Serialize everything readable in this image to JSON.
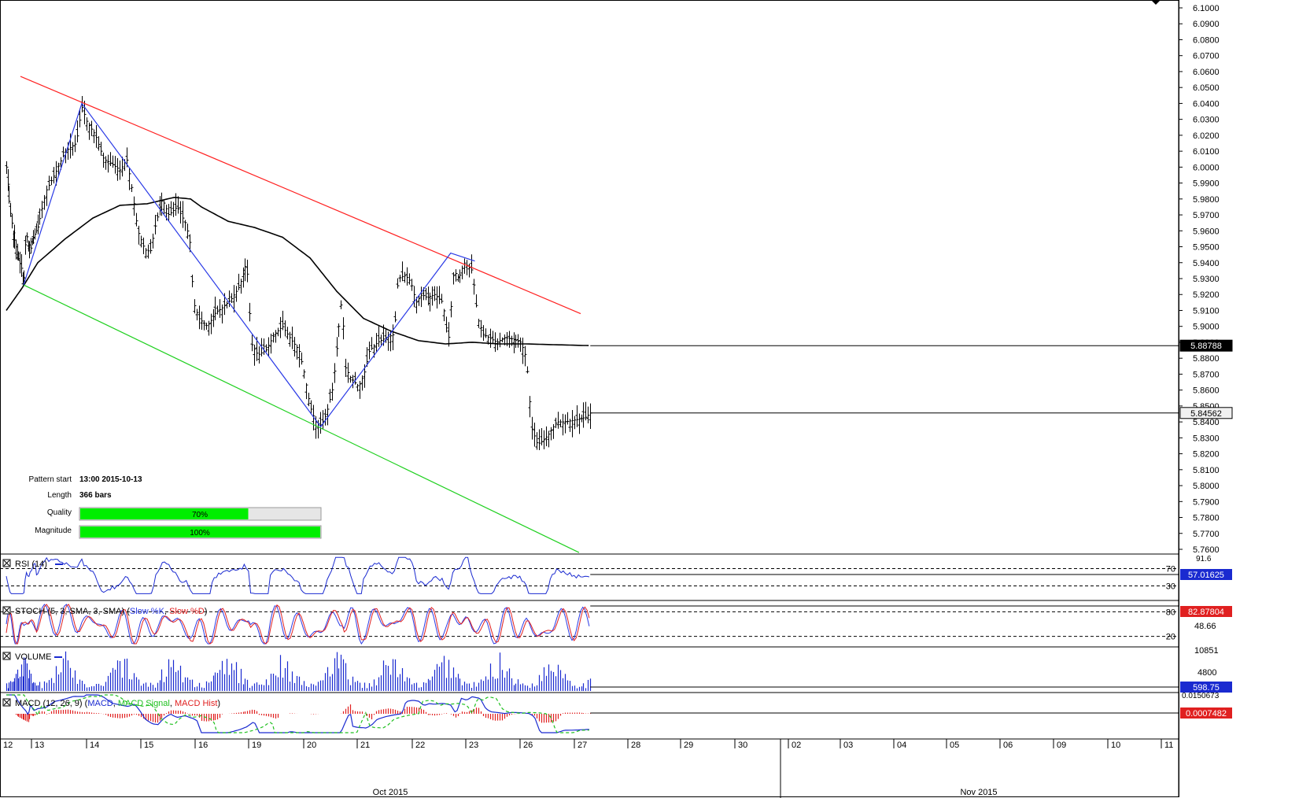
{
  "chart_data": {
    "type": "candlestick",
    "price_axis": {
      "ticks": [
        "6.1000",
        "6.0900",
        "6.0800",
        "6.0700",
        "6.0600",
        "6.0500",
        "6.0400",
        "6.0300",
        "6.0200",
        "6.0100",
        "6.0000",
        "5.9900",
        "5.9800",
        "5.9700",
        "5.9600",
        "5.9500",
        "5.9400",
        "5.9300",
        "5.9200",
        "5.9100",
        "5.9000",
        "5.8900",
        "5.8800",
        "5.8700",
        "5.8600",
        "5.8500",
        "5.8400",
        "5.8300",
        "5.8200",
        "5.8100",
        "5.8000",
        "5.7900",
        "5.7800",
        "5.7700",
        "5.7600"
      ],
      "ylim": [
        5.755,
        6.103
      ],
      "current_ma": "5.88788",
      "current_price": "5.84562"
    },
    "price_series": [
      {
        "d": 0,
        "v": 6.0
      },
      {
        "d": 0.1,
        "v": 5.975
      },
      {
        "d": 0.22,
        "v": 5.958
      },
      {
        "d": 0.35,
        "v": 5.945
      },
      {
        "d": 0.48,
        "v": 5.936
      },
      {
        "d": 0.55,
        "v": 5.926
      },
      {
        "d": 0.62,
        "v": 5.96
      },
      {
        "d": 0.72,
        "v": 5.945
      },
      {
        "d": 0.85,
        "v": 5.955
      },
      {
        "d": 1.0,
        "v": 5.963
      },
      {
        "d": 1.15,
        "v": 5.985
      },
      {
        "d": 1.3,
        "v": 5.995
      },
      {
        "d": 1.5,
        "v": 6.01
      },
      {
        "d": 1.7,
        "v": 6.015
      },
      {
        "d": 1.8,
        "v": 6.038
      },
      {
        "d": 1.9,
        "v": 6.028
      },
      {
        "d": 2.05,
        "v": 6.02
      },
      {
        "d": 2.2,
        "v": 6.005
      },
      {
        "d": 2.35,
        "v": 6.002
      },
      {
        "d": 2.5,
        "v": 5.998
      },
      {
        "d": 2.62,
        "v": 6.005
      },
      {
        "d": 2.72,
        "v": 5.985
      },
      {
        "d": 2.82,
        "v": 5.96
      },
      {
        "d": 2.95,
        "v": 5.948
      },
      {
        "d": 3.05,
        "v": 5.947
      },
      {
        "d": 3.15,
        "v": 5.965
      },
      {
        "d": 3.28,
        "v": 5.98
      },
      {
        "d": 3.4,
        "v": 5.97
      },
      {
        "d": 3.55,
        "v": 5.975
      },
      {
        "d": 3.7,
        "v": 5.965
      },
      {
        "d": 3.78,
        "v": 5.955
      },
      {
        "d": 3.85,
        "v": 5.915
      },
      {
        "d": 3.95,
        "v": 5.905
      },
      {
        "d": 4.1,
        "v": 5.9
      },
      {
        "d": 4.25,
        "v": 5.908
      },
      {
        "d": 4.4,
        "v": 5.912
      },
      {
        "d": 4.55,
        "v": 5.917
      },
      {
        "d": 4.7,
        "v": 5.925
      },
      {
        "d": 4.82,
        "v": 5.938
      },
      {
        "d": 4.88,
        "v": 5.93
      },
      {
        "d": 4.92,
        "v": 5.89
      },
      {
        "d": 5.05,
        "v": 5.882
      },
      {
        "d": 5.2,
        "v": 5.885
      },
      {
        "d": 5.35,
        "v": 5.895
      },
      {
        "d": 5.5,
        "v": 5.9
      },
      {
        "d": 5.65,
        "v": 5.892
      },
      {
        "d": 5.8,
        "v": 5.885
      },
      {
        "d": 5.9,
        "v": 5.87
      },
      {
        "d": 6.0,
        "v": 5.85
      },
      {
        "d": 6.1,
        "v": 5.84
      },
      {
        "d": 6.2,
        "v": 5.838
      },
      {
        "d": 6.3,
        "v": 5.845
      },
      {
        "d": 6.42,
        "v": 5.862
      },
      {
        "d": 6.52,
        "v": 5.895
      },
      {
        "d": 6.6,
        "v": 5.92
      },
      {
        "d": 6.65,
        "v": 5.875
      },
      {
        "d": 6.75,
        "v": 5.868
      },
      {
        "d": 6.9,
        "v": 5.862
      },
      {
        "d": 7.0,
        "v": 5.87
      },
      {
        "d": 7.1,
        "v": 5.885
      },
      {
        "d": 7.25,
        "v": 5.89
      },
      {
        "d": 7.4,
        "v": 5.893
      },
      {
        "d": 7.55,
        "v": 5.895
      },
      {
        "d": 7.62,
        "v": 5.93
      },
      {
        "d": 7.75,
        "v": 5.932
      },
      {
        "d": 7.85,
        "v": 5.928
      },
      {
        "d": 7.95,
        "v": 5.915
      },
      {
        "d": 8.05,
        "v": 5.92
      },
      {
        "d": 8.15,
        "v": 5.918
      },
      {
        "d": 8.3,
        "v": 5.92
      },
      {
        "d": 8.45,
        "v": 5.915
      },
      {
        "d": 8.55,
        "v": 5.89
      },
      {
        "d": 8.65,
        "v": 5.935
      },
      {
        "d": 8.75,
        "v": 5.93
      },
      {
        "d": 8.85,
        "v": 5.94
      },
      {
        "d": 9.0,
        "v": 5.935
      },
      {
        "d": 9.1,
        "v": 5.905
      },
      {
        "d": 9.2,
        "v": 5.895
      },
      {
        "d": 9.3,
        "v": 5.893
      },
      {
        "d": 9.45,
        "v": 5.89
      },
      {
        "d": 9.6,
        "v": 5.893
      },
      {
        "d": 9.75,
        "v": 5.892
      },
      {
        "d": 9.9,
        "v": 5.89
      },
      {
        "d": 10.0,
        "v": 5.88
      },
      {
        "d": 10.1,
        "v": 5.836
      },
      {
        "d": 10.2,
        "v": 5.826
      },
      {
        "d": 10.3,
        "v": 5.828
      },
      {
        "d": 10.4,
        "v": 5.832
      },
      {
        "d": 10.55,
        "v": 5.84
      },
      {
        "d": 10.7,
        "v": 5.84
      },
      {
        "d": 10.85,
        "v": 5.841
      },
      {
        "d": 11.0,
        "v": 5.842
      },
      {
        "d": 11.1,
        "v": 5.843
      },
      {
        "d": 11.18,
        "v": 5.8456
      }
    ],
    "ma_series": [
      {
        "d": 0,
        "v": 5.91
      },
      {
        "d": 0.5,
        "v": 5.924
      },
      {
        "d": 1.0,
        "v": 5.94
      },
      {
        "d": 1.5,
        "v": 5.955
      },
      {
        "d": 2.0,
        "v": 5.968
      },
      {
        "d": 2.5,
        "v": 5.976
      },
      {
        "d": 3.0,
        "v": 5.977
      },
      {
        "d": 3.5,
        "v": 5.981
      },
      {
        "d": 3.8,
        "v": 5.98
      },
      {
        "d": 4.0,
        "v": 5.975
      },
      {
        "d": 4.5,
        "v": 5.966
      },
      {
        "d": 5.0,
        "v": 5.962
      },
      {
        "d": 5.5,
        "v": 5.956
      },
      {
        "d": 6.0,
        "v": 5.943
      },
      {
        "d": 6.5,
        "v": 5.922
      },
      {
        "d": 7.0,
        "v": 5.905
      },
      {
        "d": 7.5,
        "v": 5.897
      },
      {
        "d": 8.0,
        "v": 5.891
      },
      {
        "d": 8.5,
        "v": 5.889
      },
      {
        "d": 9.0,
        "v": 5.89
      },
      {
        "d": 9.5,
        "v": 5.889
      },
      {
        "d": 10.0,
        "v": 5.889
      },
      {
        "d": 10.5,
        "v": 5.8885
      },
      {
        "d": 11.18,
        "v": 5.8879
      }
    ],
    "channel_upper": [
      {
        "d": 0.45,
        "v": 6.057
      },
      {
        "d": 11.0,
        "v": 5.908
      }
    ],
    "channel_lower": [
      {
        "d": 0.55,
        "v": 5.926
      },
      {
        "d": 10.97,
        "v": 5.758
      }
    ],
    "zigzag": [
      {
        "d": 0.55,
        "v": 5.926
      },
      {
        "d": 1.8,
        "v": 6.04
      },
      {
        "d": 6.2,
        "v": 5.837
      },
      {
        "d": 8.6,
        "v": 5.946
      },
      {
        "d": 9.05,
        "v": 5.941
      }
    ],
    "pattern_info": {
      "pattern_start_label": "Pattern start",
      "pattern_start_value": "13:00 2015-10-13",
      "length_label": "Length",
      "length_value": "366 bars",
      "quality_label": "Quality",
      "quality_value": 0.7,
      "quality_text": "70%",
      "magnitude_label": "Magnitude",
      "magnitude_value": 1.0,
      "magnitude_text": "100%"
    },
    "indicators": {
      "rsi": {
        "label": "RSI (14)",
        "levels": [
          "70",
          "30"
        ],
        "top_label": "91.6",
        "current": "57.01625",
        "ylim": [
          0,
          100
        ]
      },
      "stoch": {
        "label": "STOCH (5, 3, SMA, 3, SMA)",
        "k_label": "Slow %K",
        "d_label": "Slow %D",
        "levels": [
          "80",
          "20"
        ],
        "mid_label": "48.66",
        "current": "82.87804",
        "ylim": [
          0,
          100
        ]
      },
      "volume": {
        "label": "VOLUME",
        "ticks": [
          "10851",
          "4800"
        ],
        "current": "598.75",
        "ylim": [
          0,
          10851
        ]
      },
      "macd": {
        "label": "MACD (12, 26, 9)",
        "macd_label": "MACD",
        "signal_label": "MACD Signal",
        "hist_label": "MACD Hist",
        "top_tick": "0.0150673",
        "current": "0.0007482",
        "ylim": [
          -0.03,
          0.016
        ]
      }
    },
    "x_axis": {
      "days": [
        "12",
        "13",
        "14",
        "15",
        "16",
        "19",
        "20",
        "21",
        "22",
        "23",
        "26",
        "27",
        "28",
        "29",
        "30",
        "02",
        "03",
        "04",
        "05",
        "06",
        "09",
        "10",
        "11"
      ],
      "months": [
        "Oct 2015",
        "Nov 2015"
      ]
    },
    "colors": {
      "channel_upper": "#ff2020",
      "channel_lower": "#20d020",
      "zigzag": "#2a3ae6",
      "ma": "#000000",
      "bars": "#000000",
      "rsi": "#1a2ad0",
      "stoch_k": "#2a3ae6",
      "stoch_d": "#e02020",
      "volume": "#1a2ad0",
      "macd": "#1a2ad0",
      "signal": "#20c020",
      "hist": "#e02020",
      "bar_fill": "#00ee00"
    }
  }
}
